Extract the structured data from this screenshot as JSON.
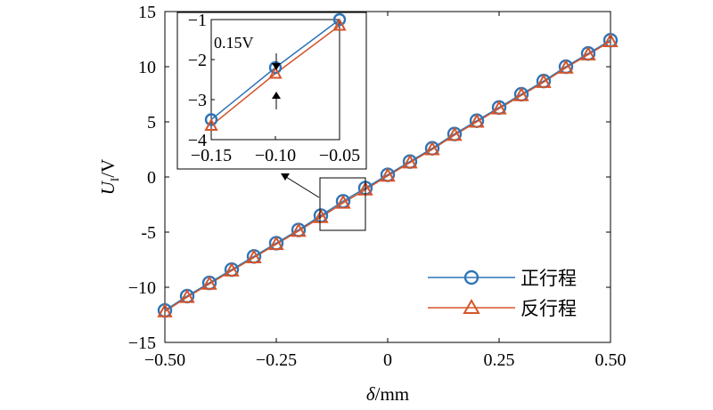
{
  "chart_data": {
    "type": "line",
    "xlabel_main": "δ",
    "xlabel_unit": "/mm",
    "ylabel_main": "U",
    "ylabel_sub": "I",
    "ylabel_unit": "/V",
    "xlim": [
      -0.5,
      0.5
    ],
    "ylim": [
      -15,
      15
    ],
    "x_ticks": [
      -0.5,
      -0.25,
      0,
      0.25,
      0.5
    ],
    "x_tick_labels": [
      "−0.50",
      "−0.25",
      "0",
      "0.25",
      "0.50"
    ],
    "y_ticks": [
      15,
      10,
      5,
      0,
      -5,
      -10,
      -15
    ],
    "y_tick_labels": [
      "15",
      "10",
      "5",
      "0",
      "-5",
      "−10",
      "−15"
    ],
    "x": [
      -0.5,
      -0.45,
      -0.4,
      -0.35,
      -0.3,
      -0.25,
      -0.2,
      -0.15,
      -0.1,
      -0.05,
      0,
      0.05,
      0.1,
      0.15,
      0.2,
      0.25,
      0.3,
      0.35,
      0.4,
      0.45,
      0.5
    ],
    "series": [
      {
        "name": "正行程",
        "color": "#2E75B6",
        "marker": "circle",
        "values": [
          -12.1,
          -10.8,
          -9.6,
          -8.4,
          -7.2,
          -6.0,
          -4.8,
          -3.5,
          -2.2,
          -1.0,
          0.2,
          1.4,
          2.6,
          3.9,
          5.1,
          6.3,
          7.5,
          8.7,
          10.0,
          11.2,
          12.4
        ]
      },
      {
        "name": "反行程",
        "color": "#D5542A",
        "marker": "triangle",
        "values": [
          -12.2,
          -10.9,
          -9.7,
          -8.5,
          -7.3,
          -6.1,
          -4.9,
          -3.65,
          -2.35,
          -1.15,
          0.1,
          1.3,
          2.5,
          3.8,
          5.0,
          6.2,
          7.4,
          8.6,
          9.9,
          11.1,
          12.3
        ]
      }
    ],
    "legend": {
      "position": "bottom-right",
      "labels": [
        "正行程",
        "反行程"
      ]
    },
    "inset": {
      "xlim": [
        -0.15,
        -0.05
      ],
      "ylim": [
        -4,
        -1
      ],
      "x_ticks": [
        -0.15,
        -0.1,
        -0.05
      ],
      "x_tick_labels": [
        "−0.15",
        "−0.10",
        "−0.05"
      ],
      "y_ticks": [
        -1,
        -2,
        -3,
        -4
      ],
      "y_tick_labels": [
        "−1",
        "−2",
        "−3",
        "−4"
      ],
      "x": [
        -0.15,
        -0.1,
        -0.05
      ],
      "series_values": [
        [
          -3.5,
          -2.2,
          -1.0
        ],
        [
          -3.65,
          -2.35,
          -1.15
        ]
      ],
      "annotation": "0.15V"
    }
  }
}
